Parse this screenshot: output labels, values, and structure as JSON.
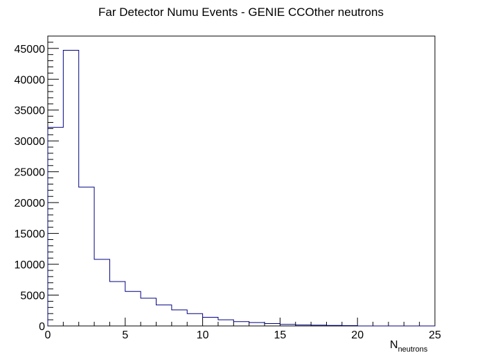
{
  "chart_data": {
    "type": "bar",
    "histogram": true,
    "title": "Far Detector Numu Events - GENIE CCOther neutrons",
    "xlabel": "N",
    "xlabel_sub": "neutrons",
    "ylabel": "",
    "xlim": [
      0,
      25
    ],
    "ylim": [
      0,
      47000
    ],
    "xticks": [
      "0",
      "5",
      "10",
      "15",
      "20",
      "25"
    ],
    "yticks": [
      "0",
      "5000",
      "10000",
      "15000",
      "20000",
      "25000",
      "30000",
      "35000",
      "40000",
      "45000"
    ],
    "bin_edges": [
      0,
      1,
      2,
      3,
      4,
      5,
      6,
      7,
      8,
      9,
      10,
      11,
      12,
      13,
      14,
      15,
      16,
      17,
      18,
      19,
      20,
      21,
      22,
      23,
      24,
      25
    ],
    "values": [
      32200,
      44700,
      22500,
      10800,
      7200,
      5600,
      4500,
      3400,
      2600,
      2000,
      1400,
      1000,
      700,
      550,
      400,
      250,
      150,
      120,
      80,
      60,
      0,
      0,
      0,
      0,
      0
    ],
    "grid": false,
    "line_color": "#000080"
  }
}
